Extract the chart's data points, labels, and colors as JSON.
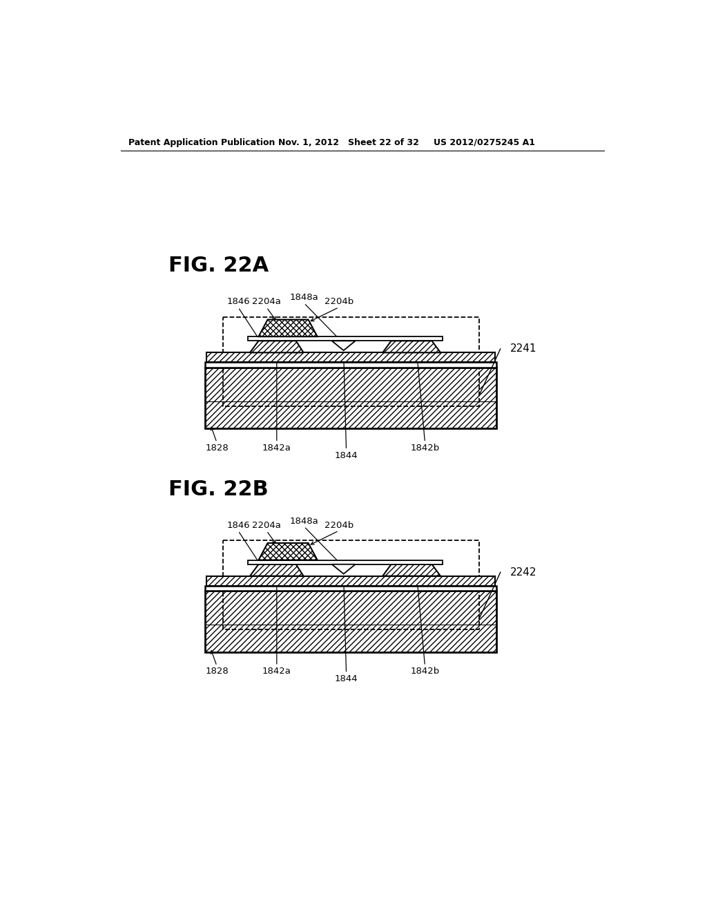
{
  "bg_color": "#ffffff",
  "header_left": "Patent Application Publication",
  "header_mid": "Nov. 1, 2012   Sheet 22 of 32",
  "header_right": "US 2012/0275245 A1",
  "fig_a_label": "FIG. 22A",
  "fig_b_label": "FIG. 22B",
  "fig_a_ref": "2241",
  "fig_b_ref": "2242"
}
